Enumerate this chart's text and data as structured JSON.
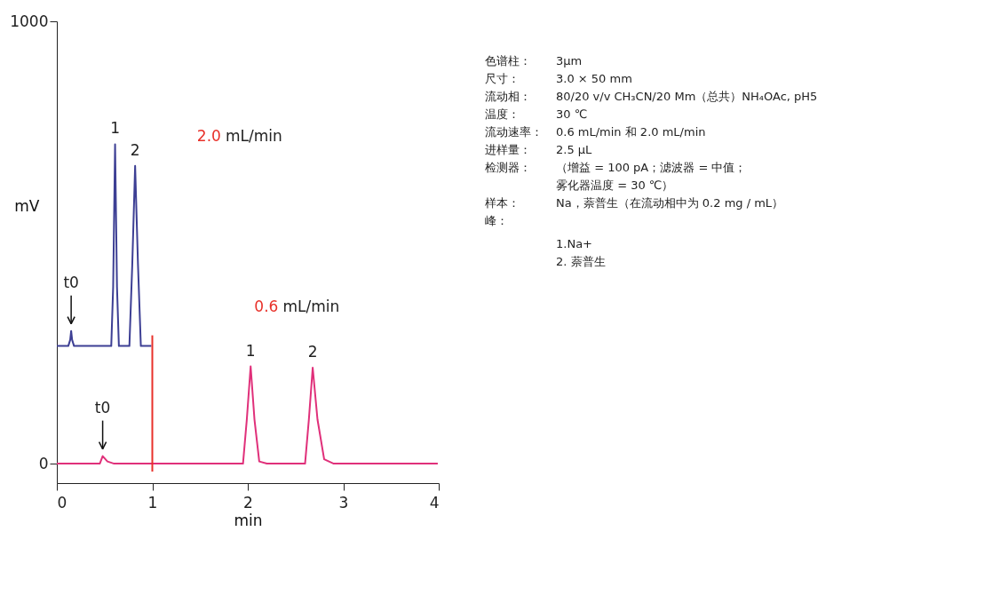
{
  "chart_data": [
    {
      "type": "line",
      "xlabel": "min",
      "ylabel": "mV",
      "xlim": [
        0,
        4
      ],
      "xticks": [
        0,
        1,
        2,
        3,
        4
      ],
      "ylim": [
        -44,
        1000
      ],
      "yticks": [
        0,
        1000
      ],
      "grid": false,
      "series": [
        {
          "color": "#3d3f94",
          "x": [
            0,
            0.12,
            0.14,
            0.15,
            0.16,
            0.18,
            0.57,
            0.59,
            0.61,
            0.63,
            0.65,
            0.76,
            0.79,
            0.82,
            0.85,
            0.88,
            0.99
          ],
          "values": [
            266,
            266,
            280,
            300,
            280,
            266,
            266,
            400,
            722,
            400,
            266,
            266,
            450,
            673,
            450,
            266,
            266
          ]
        },
        {
          "color": "#e0307a",
          "x": [
            0,
            0.45,
            0.48,
            0.53,
            0.6,
            1.95,
            1.99,
            2.03,
            2.07,
            2.12,
            2.2,
            2.6,
            2.64,
            2.68,
            2.73,
            2.8,
            2.9,
            3.99
          ],
          "values": [
            0,
            0,
            17,
            5,
            0,
            0,
            100,
            220,
            100,
            5,
            0,
            0,
            100,
            217,
            100,
            10,
            0,
            0
          ]
        }
      ],
      "ref_lines": [
        {
          "axis": "x",
          "value": 1,
          "color": "#e8312a"
        }
      ],
      "annotations": [
        {
          "text": "t0",
          "x": 0.15,
          "y": 300
        },
        {
          "text": "t0",
          "x": 0.48,
          "y": 17
        },
        {
          "text": "1",
          "x": 0.61,
          "y": 722
        },
        {
          "text": "2",
          "x": 0.82,
          "y": 673
        },
        {
          "text": "1",
          "x": 2.03,
          "y": 220
        },
        {
          "text": "2",
          "x": 2.68,
          "y": 217
        },
        "2.0 mL/min",
        "0.6 mL/min"
      ]
    },
    {
      "type": "other",
      "annotations": [
        "色谱柱：",
        "3μm",
        "尺寸：",
        "3.0 × 50 mm",
        "流动相：",
        "80/20 v/v CH₃CN/20 Mm（总共）NH₄OAc, pH5",
        "温度：",
        "30 ℃",
        "流动速率：",
        "0.6 mL/min 和 2.0 mL/min",
        "进样量：",
        "2.5 μL",
        "检测器：",
        "（增益 = 100 pA；滤波器 = 中值；",
        "雾化器温度 = 30 ℃）",
        "样本：",
        "Na，萘普生（在流动相中为 0.2 mg / mL）",
        "峰：",
        "1.Na+",
        "2. 萘普生"
      ]
    }
  ]
}
